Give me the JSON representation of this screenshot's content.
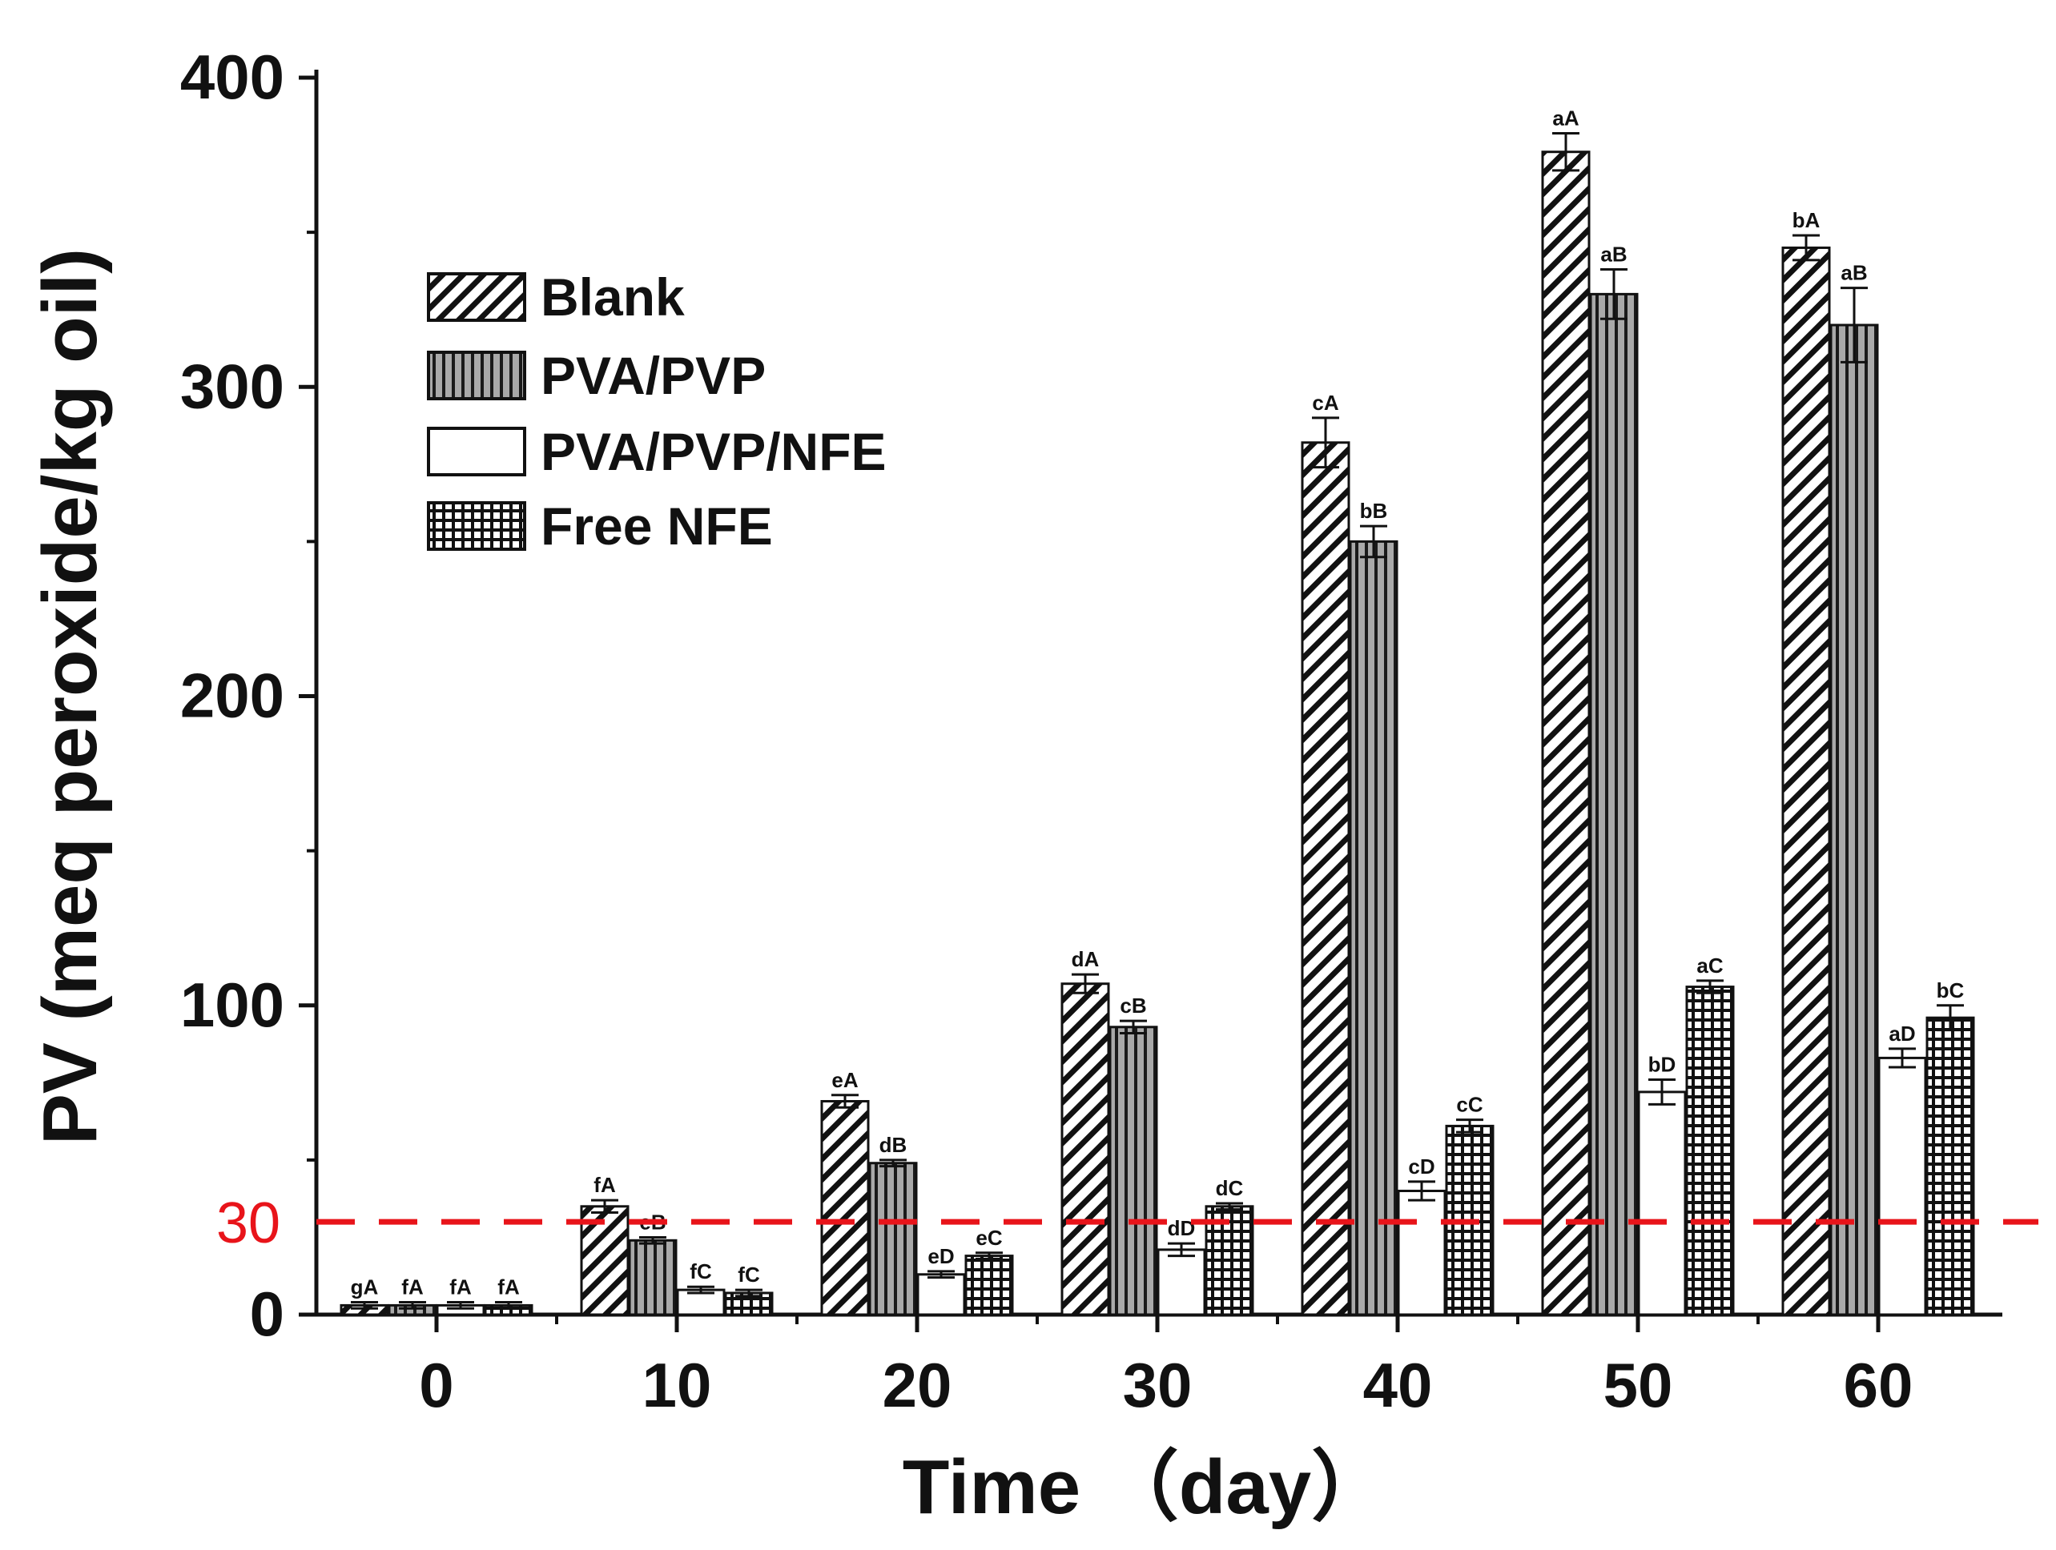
{
  "chart_data": {
    "type": "bar",
    "title": "",
    "xlabel": "Time （day）",
    "ylabel": "PV (meq peroxide/kg oil)",
    "ylim": [
      0,
      400
    ],
    "yticks": [
      0,
      100,
      200,
      300,
      400
    ],
    "categories": [
      "0",
      "10",
      "20",
      "30",
      "40",
      "50",
      "60"
    ],
    "series": [
      {
        "name": "Blank",
        "pattern": "diagonal-hatch",
        "values": [
          3,
          35,
          69,
          107,
          282,
          376,
          345
        ],
        "errors": [
          1,
          2,
          2,
          3,
          8,
          6,
          4
        ],
        "labels": [
          "gA",
          "fA",
          "eA",
          "dA",
          "cA",
          "aA",
          "bA"
        ]
      },
      {
        "name": "PVA/PVP",
        "pattern": "vertical-lines",
        "values": [
          3,
          24,
          49,
          93,
          250,
          330,
          320
        ],
        "errors": [
          1,
          1,
          1,
          2,
          5,
          8,
          12
        ],
        "labels": [
          "fA",
          "eB",
          "dB",
          "cB",
          "bB",
          "aB",
          "aB"
        ]
      },
      {
        "name": "PVA/PVP/NFE",
        "pattern": "empty",
        "values": [
          3,
          8,
          13,
          21,
          40,
          72,
          83
        ],
        "errors": [
          1,
          1,
          1,
          2,
          3,
          4,
          3
        ],
        "labels": [
          "fA",
          "fC",
          "eD",
          "dD",
          "cD",
          "bD",
          "aD"
        ]
      },
      {
        "name": "Free NFE",
        "pattern": "grid",
        "values": [
          3,
          7,
          19,
          35,
          61,
          106,
          96
        ],
        "errors": [
          1,
          1,
          1,
          1,
          2,
          2,
          4
        ],
        "labels": [
          "fA",
          "fC",
          "eC",
          "dC",
          "cC",
          "aC",
          "bC"
        ]
      }
    ],
    "reference_line": {
      "value": 30,
      "label": "30",
      "color": "#e8141a",
      "style": "dashed"
    },
    "legend": {
      "position": "top-left"
    }
  }
}
